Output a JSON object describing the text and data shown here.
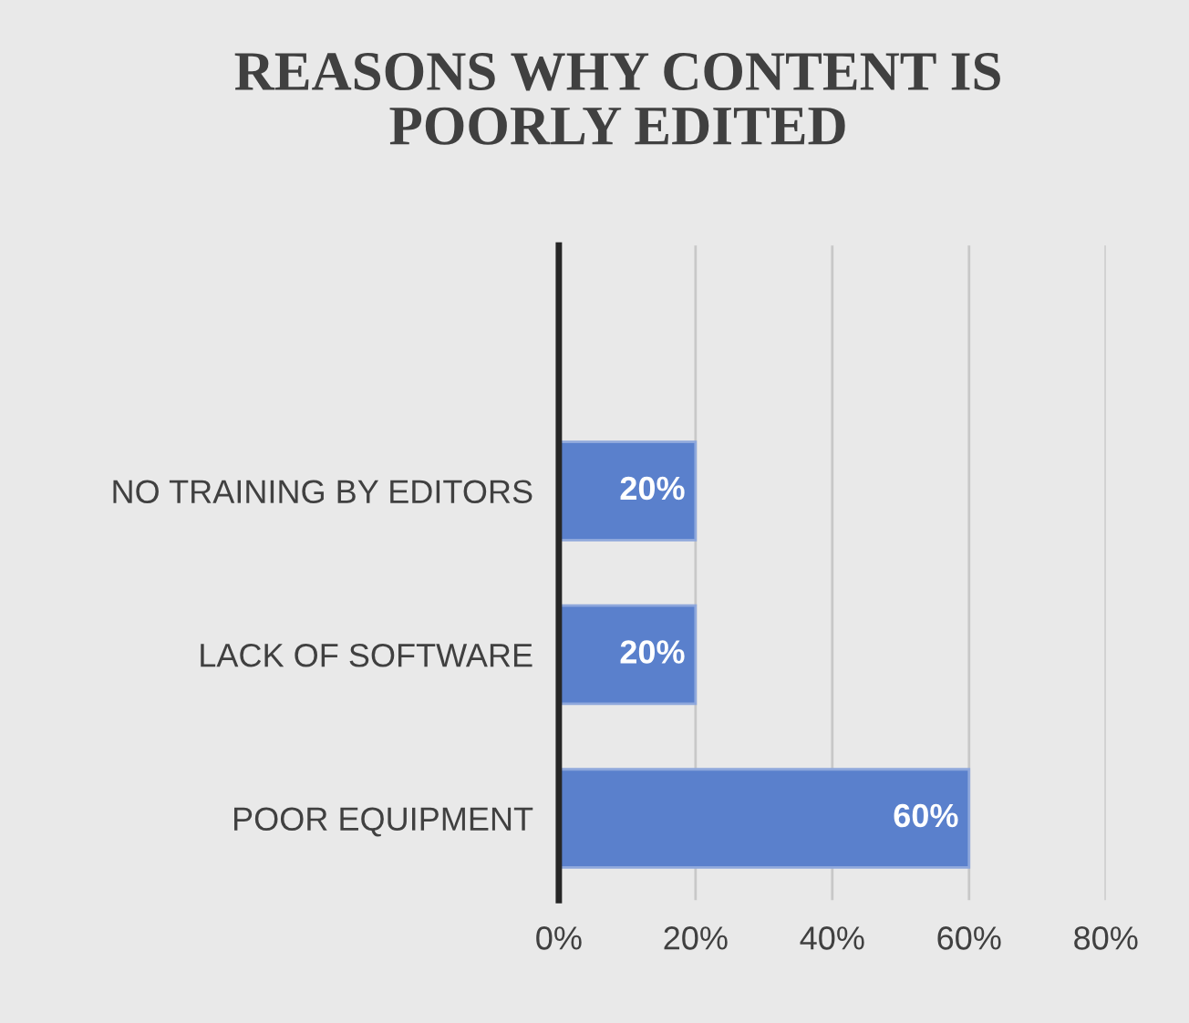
{
  "chart_data": {
    "type": "bar",
    "orientation": "horizontal",
    "title": "REASONS WHY CONTENT IS\nPOORLY EDITED",
    "categories": [
      null,
      "NO TRAINING BY EDITORS",
      "LACK OF SOFTWARE",
      "POOR EQUIPMENT"
    ],
    "values": [
      null,
      20,
      20,
      60
    ],
    "value_labels": [
      null,
      "20%",
      "20%",
      "60%"
    ],
    "color": "#5a80cc",
    "xlim": [
      0,
      80
    ],
    "xticks": [
      {
        "value": 0,
        "label": "0%"
      },
      {
        "value": 20,
        "label": "20%"
      },
      {
        "value": 40,
        "label": "40%"
      },
      {
        "value": 60,
        "label": "60%"
      },
      {
        "value": 80,
        "label": "80%"
      }
    ],
    "grid": "x"
  }
}
